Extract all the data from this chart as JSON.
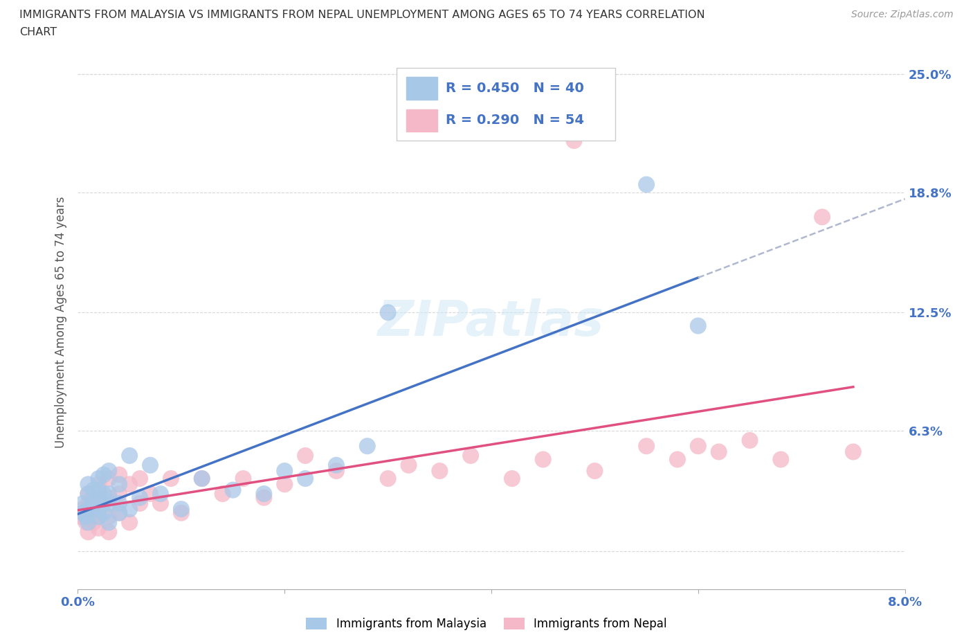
{
  "title_line1": "IMMIGRANTS FROM MALAYSIA VS IMMIGRANTS FROM NEPAL UNEMPLOYMENT AMONG AGES 65 TO 74 YEARS CORRELATION",
  "title_line2": "CHART",
  "source_text": "Source: ZipAtlas.com",
  "ylabel": "Unemployment Among Ages 65 to 74 years",
  "xlim": [
    0.0,
    0.08
  ],
  "ylim": [
    -0.02,
    0.26
  ],
  "ytick_positions": [
    0.0,
    0.063,
    0.125,
    0.188,
    0.25
  ],
  "yticklabels_right": [
    "",
    "6.3%",
    "12.5%",
    "18.8%",
    "25.0%"
  ],
  "watermark": "ZIPatlas",
  "malaysia_R": 0.45,
  "malaysia_N": 40,
  "nepal_R": 0.29,
  "nepal_N": 54,
  "malaysia_color": "#a8c8e8",
  "nepal_color": "#f5b8c8",
  "malaysia_line_color": "#4472c4",
  "nepal_line_color": "#e05080",
  "dashed_line_color": "#b0b8d0",
  "background_color": "#ffffff",
  "grid_color": "#d8d8d8",
  "malaysia_scatter_x": [
    0.0005,
    0.0005,
    0.0008,
    0.001,
    0.001,
    0.001,
    0.001,
    0.0015,
    0.0015,
    0.002,
    0.002,
    0.002,
    0.002,
    0.002,
    0.0025,
    0.0025,
    0.0025,
    0.003,
    0.003,
    0.003,
    0.003,
    0.004,
    0.004,
    0.004,
    0.005,
    0.005,
    0.006,
    0.007,
    0.008,
    0.01,
    0.012,
    0.015,
    0.018,
    0.02,
    0.022,
    0.025,
    0.028,
    0.03,
    0.055,
    0.06
  ],
  "malaysia_scatter_y": [
    0.02,
    0.025,
    0.018,
    0.015,
    0.022,
    0.03,
    0.035,
    0.025,
    0.032,
    0.018,
    0.022,
    0.028,
    0.032,
    0.038,
    0.02,
    0.03,
    0.04,
    0.015,
    0.025,
    0.03,
    0.042,
    0.02,
    0.025,
    0.035,
    0.022,
    0.05,
    0.028,
    0.045,
    0.03,
    0.022,
    0.038,
    0.032,
    0.03,
    0.042,
    0.038,
    0.045,
    0.055,
    0.125,
    0.192,
    0.118
  ],
  "nepal_scatter_x": [
    0.0003,
    0.0005,
    0.0008,
    0.001,
    0.001,
    0.001,
    0.001,
    0.0012,
    0.0015,
    0.0015,
    0.002,
    0.002,
    0.002,
    0.002,
    0.002,
    0.0025,
    0.003,
    0.003,
    0.003,
    0.003,
    0.004,
    0.004,
    0.004,
    0.005,
    0.005,
    0.006,
    0.006,
    0.007,
    0.008,
    0.009,
    0.01,
    0.012,
    0.014,
    0.016,
    0.018,
    0.02,
    0.022,
    0.025,
    0.03,
    0.032,
    0.035,
    0.038,
    0.042,
    0.045,
    0.048,
    0.05,
    0.055,
    0.058,
    0.06,
    0.062,
    0.065,
    0.068,
    0.072,
    0.075
  ],
  "nepal_scatter_y": [
    0.018,
    0.022,
    0.015,
    0.01,
    0.018,
    0.025,
    0.03,
    0.02,
    0.015,
    0.028,
    0.012,
    0.018,
    0.022,
    0.028,
    0.035,
    0.025,
    0.01,
    0.018,
    0.028,
    0.038,
    0.02,
    0.03,
    0.04,
    0.015,
    0.035,
    0.025,
    0.038,
    0.03,
    0.025,
    0.038,
    0.02,
    0.038,
    0.03,
    0.038,
    0.028,
    0.035,
    0.05,
    0.042,
    0.038,
    0.045,
    0.042,
    0.05,
    0.038,
    0.048,
    0.215,
    0.042,
    0.055,
    0.048,
    0.055,
    0.052,
    0.058,
    0.048,
    0.175,
    0.052
  ]
}
